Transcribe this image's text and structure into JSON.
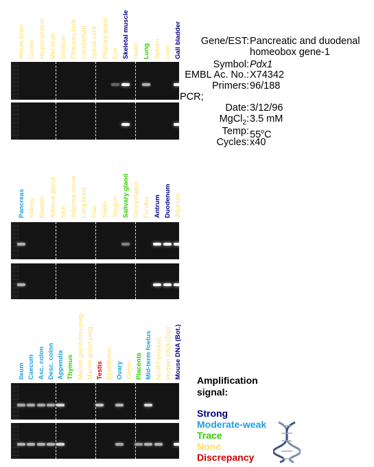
{
  "panels": [
    {
      "labels": [
        {
          "text": "Whole brain",
          "color": "#ffe066"
        },
        {
          "text": "Cortex",
          "color": "#ffe066"
        },
        {
          "text": "Hippocampus",
          "color": "#ffe066"
        },
        {
          "text": "Mid brain",
          "color": "#ffe066"
        },
        {
          "text": "Striatum",
          "color": "#ffe066"
        },
        {
          "text": "Olfactory bulb",
          "color": "#ffe066"
        },
        {
          "text": "Cerebellum",
          "color": "#ffe066"
        },
        {
          "text": "Spinal cord",
          "color": "#ffe066"
        },
        {
          "text": "Pituitary gland",
          "color": "#ffe066"
        },
        {
          "text": "Eye",
          "color": "#ffe066"
        },
        {
          "text": "Skeletal muscle",
          "color": "#000080"
        },
        {
          "text": "Heart",
          "color": "#ffe066"
        },
        {
          "text": "Lung",
          "color": "#33cc00"
        },
        {
          "text": "Spleen",
          "color": "#ffe066"
        },
        {
          "text": "Liver",
          "color": "#ffe066"
        },
        {
          "text": "Gall bladder",
          "color": "#000080"
        }
      ],
      "bands_top": [
        0,
        0,
        0,
        0,
        0,
        0,
        0,
        0,
        0,
        0.2,
        1,
        0,
        0.6,
        0,
        0,
        1
      ],
      "bands_bottom": [
        0,
        0,
        0,
        0,
        0,
        0,
        0,
        0,
        0,
        0,
        1,
        0,
        0,
        0,
        0,
        1
      ]
    },
    {
      "labels": [
        {
          "text": "Pancreas",
          "color": "#1ea0e0"
        },
        {
          "text": "Kidney",
          "color": "#ffe066"
        },
        {
          "text": "Bladder",
          "color": "#ffe066"
        },
        {
          "text": "Adrenal gland",
          "color": "#ffe066"
        },
        {
          "text": "Skin",
          "color": "#ffe066"
        },
        {
          "text": "Adipose tissue",
          "color": "#ffe066"
        },
        {
          "text": "Long bone",
          "color": "#ffe066"
        },
        {
          "text": "Paw",
          "color": "#ffe066"
        },
        {
          "text": "Teeth",
          "color": "#ffe066"
        },
        {
          "text": "Tongue",
          "color": "#ffe066"
        },
        {
          "text": "Salivary gland",
          "color": "#33cc00"
        },
        {
          "text": "Oesophagus",
          "color": "#ffe066"
        },
        {
          "text": "Fundus",
          "color": "#ffe066"
        },
        {
          "text": "Antrum",
          "color": "#000080"
        },
        {
          "text": "Duodenum",
          "color": "#000080"
        },
        {
          "text": "Jejunum",
          "color": "#ffe066"
        }
      ],
      "bands_top": [
        0.6,
        0,
        0,
        0,
        0,
        0,
        0,
        0,
        0,
        0,
        0.35,
        0,
        0,
        1,
        1,
        1
      ],
      "bands_bottom": [
        0.6,
        0,
        0,
        0,
        0,
        0,
        0,
        0,
        0,
        0,
        0,
        0,
        0,
        1,
        1,
        1
      ]
    },
    {
      "labels": [
        {
          "text": "Ileum",
          "color": "#1ea0e0"
        },
        {
          "text": "Caecum",
          "color": "#1ea0e0"
        },
        {
          "text": "Asc. colon",
          "color": "#1ea0e0"
        },
        {
          "text": "Desc. colon",
          "color": "#1ea0e0"
        },
        {
          "text": "Appendix",
          "color": "#1ea0e0"
        },
        {
          "text": "Thymus",
          "color": "#33cc00"
        },
        {
          "text": "Mamm.gland non-preg.",
          "color": "#ffe066"
        },
        {
          "text": "Mamm.gland preg.",
          "color": "#ffe066"
        },
        {
          "text": "Testis",
          "color": "#cc0000"
        },
        {
          "text": "Epididymis",
          "color": "#ffe066"
        },
        {
          "text": "Ovary",
          "color": "#1ea0e0"
        },
        {
          "text": "Cervix",
          "color": "#ffe066"
        },
        {
          "text": "Placenta",
          "color": "#33cc00"
        },
        {
          "text": "Mid-term foetus",
          "color": "#1ea0e0"
        },
        {
          "text": "No RT product",
          "color": "#ffe066"
        },
        {
          "text": "Human DNA (Top)",
          "color": "#ffe066"
        },
        {
          "text": "Mouse DNA (Bot.)",
          "color": "#000080"
        }
      ],
      "bands_top": [
        0.55,
        0.55,
        0.55,
        0.55,
        0.8,
        0,
        0,
        0,
        0.7,
        0,
        0.6,
        0,
        0,
        0.8,
        0,
        0,
        0
      ],
      "bands_bottom": [
        0.6,
        0.6,
        0.6,
        0.6,
        0.8,
        0,
        0,
        0,
        0,
        0,
        0.55,
        0,
        0.5,
        0.6,
        0.6,
        0,
        1
      ]
    }
  ],
  "info": {
    "gene_key": "Gene/EST:",
    "gene_value_1": "Pancreatic and duodenal",
    "gene_value_2": "homeobox gene-1",
    "symbol_key": "Symbol:",
    "symbol_value": "Pdx1",
    "embl_key": "EMBL Ac. No.:",
    "embl_value": "X74342",
    "primers_key": "Primers:",
    "primers_value": "96/188",
    "pcr_label": "PCR;",
    "date_key": "Date:",
    "date_value": "3/12/96",
    "mgcl_key_a": "MgCl",
    "mgcl_key_sub": "2",
    "mgcl_key_b": ":",
    "mgcl_value": "3.5 mM",
    "temp_key": "Temp:",
    "temp_value_a": "55",
    "temp_value_sup": "o",
    "temp_value_b": "C",
    "cycles_key": "Cycles:",
    "cycles_value": "x40"
  },
  "legend": {
    "title": "Amplification signal:",
    "items": [
      {
        "label": "Strong",
        "color": "#000080"
      },
      {
        "label": "Moderate-weak",
        "color": "#1ea0e0"
      },
      {
        "label": "Trace",
        "color": "#33cc00"
      },
      {
        "label": "None",
        "color": "#ffe066"
      },
      {
        "label": "Discrepancy",
        "color": "#cc0000"
      }
    ]
  }
}
